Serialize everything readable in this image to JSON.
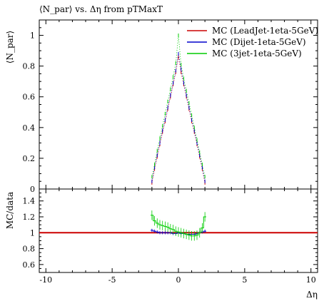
{
  "chart_data": {
    "type": "line",
    "title": "⟨N_par⟩ vs. Δη from pTMaxT",
    "xlabel": "Δη",
    "ylabel_main": "⟨N_par⟩",
    "ylabel_ratio": "MC/data",
    "xlim": [
      -10.5,
      10.5
    ],
    "ylim_main": [
      0,
      1.1
    ],
    "ylim_ratio": [
      0.5,
      1.55
    ],
    "x_ticks": [
      "-10",
      "-5",
      "0",
      "5",
      "10"
    ],
    "y_ticks_main": [
      "0",
      "0.2",
      "0.4",
      "0.6",
      "0.8",
      "1"
    ],
    "y_ticks_ratio": [
      "0.6",
      "0.8",
      "1",
      "1.2",
      "1.4"
    ],
    "legend_position": "top-right",
    "legend": [
      {
        "label": "MC (LeadJet-1eta-5GeV)",
        "color": "#cc0000"
      },
      {
        "label": "MC (Dijet-1eta-5GeV)",
        "color": "#0000cc"
      },
      {
        "label": "MC (3jet-1eta-5GeV)",
        "color": "#00cc00"
      }
    ],
    "x": [
      -2.0,
      -1.8,
      -1.6,
      -1.4,
      -1.2,
      -1.0,
      -0.8,
      -0.6,
      -0.4,
      -0.2,
      0.0,
      0.2,
      0.4,
      0.6,
      0.8,
      1.0,
      1.2,
      1.4,
      1.6,
      1.8,
      2.0
    ],
    "series": [
      {
        "name": "MC (LeadJet-1eta-5GeV)",
        "values": [
          0.04,
          0.13,
          0.21,
          0.29,
          0.37,
          0.44,
          0.52,
          0.6,
          0.68,
          0.76,
          0.86,
          0.76,
          0.68,
          0.6,
          0.52,
          0.44,
          0.37,
          0.29,
          0.21,
          0.13,
          0.04
        ]
      },
      {
        "name": "MC (Dijet-1eta-5GeV)",
        "values": [
          0.05,
          0.14,
          0.22,
          0.3,
          0.38,
          0.45,
          0.53,
          0.61,
          0.69,
          0.77,
          0.88,
          0.78,
          0.69,
          0.61,
          0.53,
          0.45,
          0.38,
          0.3,
          0.22,
          0.14,
          0.05
        ]
      },
      {
        "name": "MC (3jet-1eta-5GeV)",
        "values": [
          0.08,
          0.16,
          0.25,
          0.33,
          0.41,
          0.49,
          0.57,
          0.65,
          0.73,
          0.82,
          1.0,
          0.81,
          0.72,
          0.64,
          0.56,
          0.48,
          0.4,
          0.32,
          0.24,
          0.16,
          0.08
        ]
      }
    ],
    "ratio_series": [
      {
        "name": "MC (LeadJet-1eta-5GeV)",
        "values": [
          1.0,
          1.0,
          1.0,
          1.0,
          1.0,
          1.0,
          1.0,
          1.0,
          1.0,
          1.0,
          1.0,
          1.0,
          1.0,
          1.0,
          1.0,
          1.0,
          1.0,
          1.0,
          1.0,
          1.0,
          1.0
        ]
      },
      {
        "name": "MC (Dijet-1eta-5GeV)",
        "values": [
          1.03,
          1.02,
          1.01,
          1.0,
          1.0,
          1.0,
          1.0,
          1.0,
          0.99,
          0.99,
          1.0,
          0.99,
          0.99,
          0.98,
          0.98,
          0.98,
          0.98,
          0.99,
          1.0,
          1.01,
          1.02
        ]
      },
      {
        "name": "MC (3jet-1eta-5GeV)",
        "values": [
          1.22,
          1.15,
          1.12,
          1.1,
          1.09,
          1.08,
          1.07,
          1.05,
          1.04,
          1.02,
          1.01,
          1.0,
          0.99,
          0.98,
          0.97,
          0.96,
          0.96,
          0.97,
          1.0,
          1.06,
          1.2
        ]
      }
    ]
  }
}
